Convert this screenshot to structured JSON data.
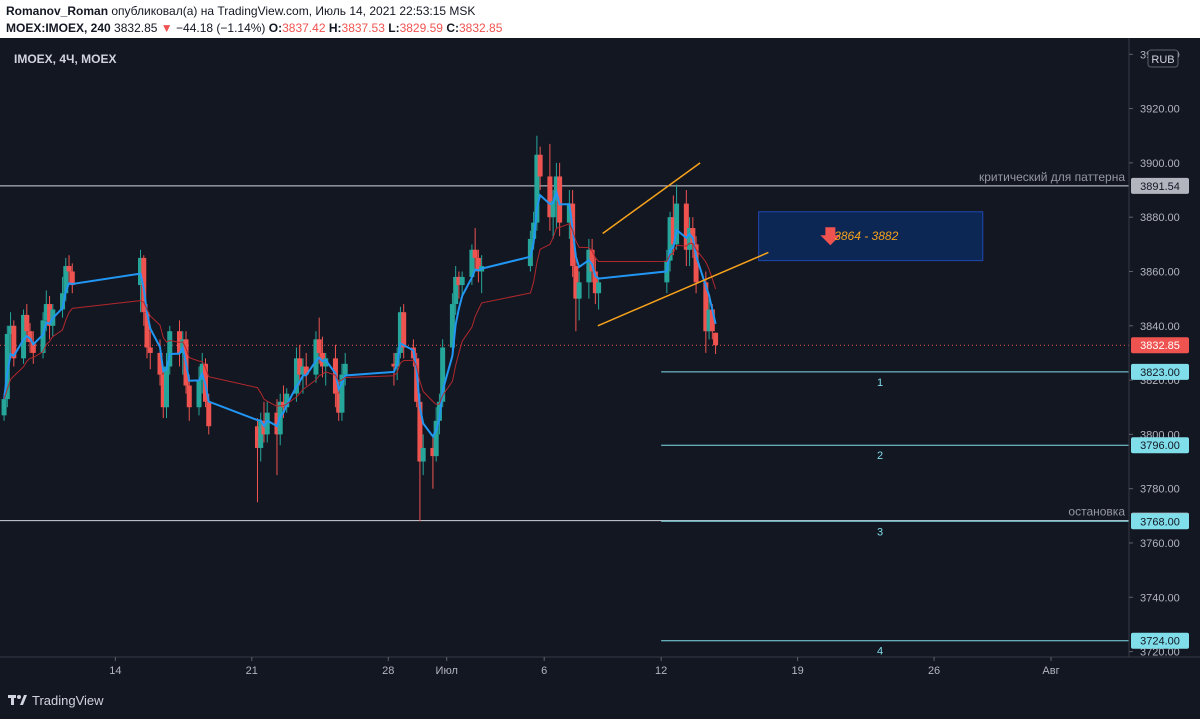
{
  "header": {
    "author": "Romanov_Roman",
    "published_text": "опубликовал(а) на TradingView.com, Июль 14, 2021 22:53:15 MSK",
    "symbol": "MOEX:IMOEX, 240",
    "last": "3832.85",
    "change": "−44.18 (−1.14%)",
    "o_label": "O:",
    "o_value": "3837.42",
    "h_label": "H:",
    "h_value": "3837.53",
    "l_label": "L:",
    "l_value": "3829.59",
    "c_label": "C:",
    "c_value": "3832.85"
  },
  "footer": {
    "brand": "TradingView"
  },
  "colors": {
    "background": "#131722",
    "bull": "#26a69a",
    "bear": "#ef5350",
    "ma_fast": "#2196f3",
    "ma_slow": "#b2282d",
    "wedge": "#f7a21b",
    "target_line": "#80deea",
    "level_line": "#d1d4dc"
  },
  "chart_data": {
    "type": "candlestick",
    "title": "IMOEX, 4Ч, MOEX",
    "currency": "RUB",
    "x_ticks": [
      "14",
      "21",
      "28",
      "Июл",
      "6",
      "12",
      "19",
      "26",
      "Авг"
    ],
    "x_tick_dates": [
      "2021-06-14",
      "2021-06-21",
      "2021-06-28",
      "2021-07-01",
      "2021-07-06",
      "2021-07-12",
      "2021-07-19",
      "2021-07-26",
      "2021-08-01"
    ],
    "y_ticks": [
      3720,
      3740,
      3760,
      3780,
      3800,
      3820,
      3840,
      3860,
      3880,
      3900,
      3920,
      3940
    ],
    "y_tick_labels": [
      "3720.00",
      "3740.00",
      "3760.00",
      "3780.00",
      "3800.00",
      "3820.00",
      "3840.00",
      "3860.00",
      "3880.00",
      "3900.00",
      "3920.00",
      "3940.00"
    ],
    "ylim": [
      3718,
      3946
    ],
    "xlim": [
      "2021-06-08T02:00",
      "2021-08-05T00:00"
    ],
    "grid": false,
    "last_price": {
      "value": 3832.85,
      "label": "3832.85"
    },
    "candles": [
      [
        "2021-06-08T07:00",
        3807,
        3815,
        3805,
        3813
      ],
      [
        "2021-06-08T11:00",
        3813,
        3840,
        3810,
        3837
      ],
      [
        "2021-06-08T15:00",
        3837,
        3845,
        3830,
        3840
      ],
      [
        "2021-06-08T19:00",
        3840,
        3842,
        3825,
        3828
      ],
      [
        "2021-06-09T07:00",
        3828,
        3846,
        3826,
        3844
      ],
      [
        "2021-06-09T11:00",
        3844,
        3848,
        3834,
        3838
      ],
      [
        "2021-06-09T15:00",
        3838,
        3841,
        3830,
        3834
      ],
      [
        "2021-06-09T19:00",
        3834,
        3838,
        3826,
        3830
      ],
      [
        "2021-06-10T07:00",
        3830,
        3845,
        3828,
        3842
      ],
      [
        "2021-06-10T11:00",
        3842,
        3853,
        3838,
        3848
      ],
      [
        "2021-06-10T15:00",
        3848,
        3851,
        3835,
        3840
      ],
      [
        "2021-06-10T19:00",
        3840,
        3848,
        3836,
        3846
      ],
      [
        "2021-06-11T07:00",
        3846,
        3858,
        3843,
        3852
      ],
      [
        "2021-06-11T11:00",
        3852,
        3865,
        3849,
        3862
      ],
      [
        "2021-06-11T15:00",
        3862,
        3866,
        3855,
        3860
      ],
      [
        "2021-06-11T19:00",
        3860,
        3863,
        3852,
        3855
      ],
      [
        "2021-06-15T07:00",
        3855,
        3868,
        3845,
        3865
      ],
      [
        "2021-06-15T11:00",
        3865,
        3866,
        3840,
        3845
      ],
      [
        "2021-06-15T15:00",
        3845,
        3848,
        3828,
        3832
      ],
      [
        "2021-06-15T19:00",
        3832,
        3838,
        3824,
        3830
      ],
      [
        "2021-06-16T07:00",
        3830,
        3835,
        3818,
        3822
      ],
      [
        "2021-06-16T11:00",
        3822,
        3825,
        3806,
        3810
      ],
      [
        "2021-06-16T15:00",
        3810,
        3830,
        3806,
        3825
      ],
      [
        "2021-06-16T19:00",
        3825,
        3840,
        3822,
        3838
      ],
      [
        "2021-06-17T07:00",
        3838,
        3842,
        3825,
        3830
      ],
      [
        "2021-06-17T11:00",
        3830,
        3838,
        3822,
        3835
      ],
      [
        "2021-06-17T15:00",
        3835,
        3838,
        3815,
        3818
      ],
      [
        "2021-06-17T19:00",
        3818,
        3822,
        3805,
        3810
      ],
      [
        "2021-06-18T07:00",
        3810,
        3825,
        3807,
        3820
      ],
      [
        "2021-06-18T11:00",
        3820,
        3830,
        3815,
        3826
      ],
      [
        "2021-06-18T15:00",
        3826,
        3828,
        3810,
        3812
      ],
      [
        "2021-06-18T19:00",
        3812,
        3815,
        3800,
        3803
      ],
      [
        "2021-06-21T07:00",
        3803,
        3806,
        3775,
        3795
      ],
      [
        "2021-06-21T11:00",
        3795,
        3808,
        3790,
        3805
      ],
      [
        "2021-06-21T15:00",
        3805,
        3812,
        3797,
        3800
      ],
      [
        "2021-06-21T19:00",
        3800,
        3812,
        3797,
        3808
      ],
      [
        "2021-06-22T07:00",
        3808,
        3813,
        3785,
        3800
      ],
      [
        "2021-06-22T11:00",
        3800,
        3815,
        3796,
        3812
      ],
      [
        "2021-06-22T15:00",
        3812,
        3818,
        3806,
        3810
      ],
      [
        "2021-06-22T19:00",
        3810,
        3817,
        3808,
        3815
      ],
      [
        "2021-06-23T07:00",
        3815,
        3832,
        3812,
        3828
      ],
      [
        "2021-06-23T11:00",
        3828,
        3833,
        3818,
        3822
      ],
      [
        "2021-06-23T15:00",
        3822,
        3828,
        3815,
        3825
      ],
      [
        "2021-06-23T19:00",
        3825,
        3830,
        3818,
        3822
      ],
      [
        "2021-06-24T07:00",
        3822,
        3838,
        3819,
        3835
      ],
      [
        "2021-06-24T11:00",
        3835,
        3843,
        3826,
        3830
      ],
      [
        "2021-06-24T15:00",
        3830,
        3836,
        3821,
        3825
      ],
      [
        "2021-06-24T19:00",
        3825,
        3830,
        3818,
        3828
      ],
      [
        "2021-06-25T07:00",
        3828,
        3833,
        3810,
        3815
      ],
      [
        "2021-06-25T11:00",
        3815,
        3820,
        3805,
        3808
      ],
      [
        "2021-06-25T15:00",
        3808,
        3826,
        3805,
        3822
      ],
      [
        "2021-06-25T19:00",
        3822,
        3830,
        3818,
        3826
      ],
      [
        "2021-06-28T07:00",
        3826,
        3830,
        3818,
        3825
      ],
      [
        "2021-06-28T11:00",
        3825,
        3832,
        3820,
        3830
      ],
      [
        "2021-06-28T15:00",
        3830,
        3847,
        3828,
        3845
      ],
      [
        "2021-06-28T19:00",
        3845,
        3848,
        3828,
        3832
      ],
      [
        "2021-06-29T07:00",
        3832,
        3835,
        3825,
        3828
      ],
      [
        "2021-06-29T11:00",
        3828,
        3830,
        3810,
        3812
      ],
      [
        "2021-06-29T15:00",
        3812,
        3815,
        3768,
        3790
      ],
      [
        "2021-06-29T19:00",
        3790,
        3800,
        3785,
        3795
      ],
      [
        "2021-06-30T07:00",
        3795,
        3800,
        3780,
        3792
      ],
      [
        "2021-06-30T11:00",
        3792,
        3810,
        3790,
        3805
      ],
      [
        "2021-06-30T15:00",
        3805,
        3815,
        3800,
        3812
      ],
      [
        "2021-06-30T19:00",
        3812,
        3835,
        3810,
        3832
      ],
      [
        "2021-07-01T07:00",
        3832,
        3852,
        3830,
        3848
      ],
      [
        "2021-07-01T11:00",
        3848,
        3862,
        3844,
        3858
      ],
      [
        "2021-07-01T15:00",
        3858,
        3860,
        3850,
        3855
      ],
      [
        "2021-07-01T19:00",
        3855,
        3860,
        3850,
        3858
      ],
      [
        "2021-07-02T07:00",
        3858,
        3870,
        3855,
        3868
      ],
      [
        "2021-07-02T11:00",
        3868,
        3876,
        3860,
        3865
      ],
      [
        "2021-07-02T15:00",
        3865,
        3868,
        3856,
        3860
      ],
      [
        "2021-07-02T19:00",
        3860,
        3866,
        3852,
        3862
      ],
      [
        "2021-07-05T07:00",
        3862,
        3875,
        3860,
        3872
      ],
      [
        "2021-07-05T11:00",
        3872,
        3882,
        3868,
        3878
      ],
      [
        "2021-07-05T15:00",
        3878,
        3910,
        3875,
        3903
      ],
      [
        "2021-07-05T19:00",
        3903,
        3906,
        3890,
        3895
      ],
      [
        "2021-07-06T07:00",
        3895,
        3907,
        3875,
        3880
      ],
      [
        "2021-07-06T11:00",
        3880,
        3890,
        3872,
        3886
      ],
      [
        "2021-07-06T15:00",
        3886,
        3900,
        3876,
        3895
      ],
      [
        "2021-07-06T19:00",
        3895,
        3900,
        3873,
        3878
      ],
      [
        "2021-07-07T07:00",
        3878,
        3890,
        3872,
        3885
      ],
      [
        "2021-07-07T11:00",
        3885,
        3890,
        3858,
        3862
      ],
      [
        "2021-07-07T15:00",
        3862,
        3866,
        3838,
        3850
      ],
      [
        "2021-07-07T19:00",
        3850,
        3860,
        3842,
        3856
      ],
      [
        "2021-07-08T07:00",
        3856,
        3872,
        3850,
        3868
      ],
      [
        "2021-07-08T11:00",
        3868,
        3872,
        3856,
        3860
      ],
      [
        "2021-07-08T15:00",
        3860,
        3865,
        3848,
        3852
      ],
      [
        "2021-07-08T19:00",
        3852,
        3858,
        3846,
        3856
      ],
      [
        "2021-07-12T07:00",
        3856,
        3868,
        3852,
        3864
      ],
      [
        "2021-07-12T11:00",
        3864,
        3882,
        3860,
        3880
      ],
      [
        "2021-07-12T15:00",
        3880,
        3888,
        3866,
        3870
      ],
      [
        "2021-07-12T19:00",
        3870,
        3892,
        3868,
        3885
      ],
      [
        "2021-07-13T07:00",
        3885,
        3890,
        3862,
        3868
      ],
      [
        "2021-07-13T11:00",
        3868,
        3880,
        3862,
        3876
      ],
      [
        "2021-07-13T15:00",
        3876,
        3880,
        3865,
        3870
      ],
      [
        "2021-07-13T19:00",
        3870,
        3873,
        3852,
        3856
      ],
      [
        "2021-07-14T07:00",
        3856,
        3860,
        3830,
        3838
      ],
      [
        "2021-07-14T11:00",
        3838,
        3850,
        3835,
        3846
      ],
      [
        "2021-07-14T15:00",
        3846,
        3848,
        3835,
        3838
      ],
      [
        "2021-07-14T19:00",
        3837.42,
        3837.53,
        3829.59,
        3832.85
      ]
    ],
    "levels": [
      {
        "price": 3891.54,
        "label": "3891.54",
        "text": "критический для паттерна",
        "from": "2021-06-08T02:00",
        "badge": "grey"
      },
      {
        "price": 3768.24,
        "label": "3768.24",
        "text": "остановка",
        "from": "2021-06-08T02:00",
        "badge": "grey"
      },
      {
        "price": 3823.0,
        "label": "3823.00",
        "text": "1",
        "from": "2021-07-12T00:00",
        "badge": "cyan"
      },
      {
        "price": 3796.0,
        "label": "3796.00",
        "text": "2",
        "from": "2021-07-12T00:00",
        "badge": "cyan"
      },
      {
        "price": 3768.0,
        "label": "3768.00",
        "text": "3",
        "from": "2021-07-12T00:00",
        "badge": "cyan"
      },
      {
        "price": 3724.0,
        "label": "3724.00",
        "text": "4",
        "from": "2021-07-12T00:00",
        "badge": "cyan"
      }
    ],
    "wedge": {
      "upper": [
        [
          "2021-07-09T00:00",
          3874
        ],
        [
          "2021-07-14T00:00",
          3900
        ]
      ],
      "lower": [
        [
          "2021-07-08T18:00",
          3840
        ],
        [
          "2021-07-17T12:00",
          3867
        ]
      ]
    },
    "target_zone": {
      "from": "2021-07-17T00:00",
      "to": "2021-07-28T12:00",
      "low": 3864,
      "high": 3882,
      "label": "3864 - 3882"
    }
  }
}
